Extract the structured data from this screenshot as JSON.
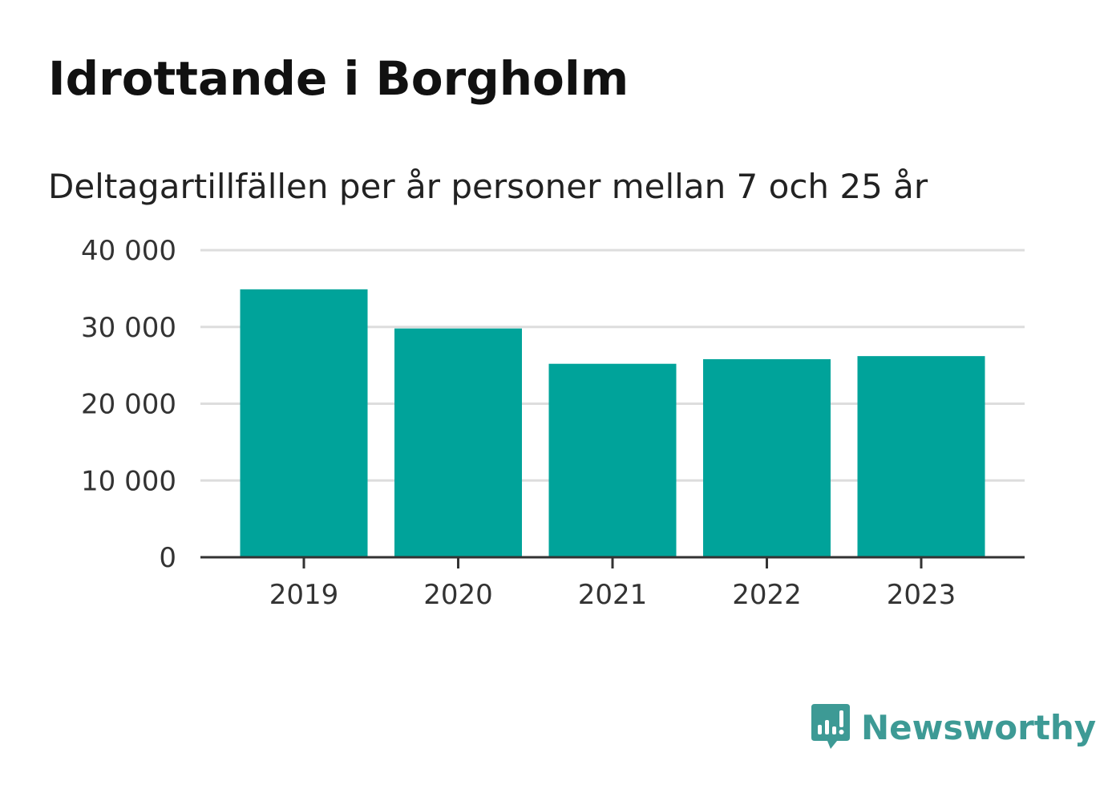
{
  "header": {
    "title": "Idrottande i Borgholm",
    "subtitle": "Deltagartillfällen per år personer mellan 7 och 25 år"
  },
  "brand": {
    "name": "Newsworthy",
    "icon": "newsworthy-logo-icon",
    "color": "#3d9a95"
  },
  "chart_data": {
    "type": "bar",
    "title": "Idrottande i Borgholm",
    "subtitle": "Deltagartillfällen per år personer mellan 7 och 25 år",
    "xlabel": "",
    "ylabel": "",
    "categories": [
      "2019",
      "2020",
      "2021",
      "2022",
      "2023"
    ],
    "values": [
      34900,
      29800,
      25200,
      25800,
      26200
    ],
    "ylim": [
      0,
      40000
    ],
    "yticks": [
      0,
      10000,
      20000,
      30000,
      40000
    ],
    "ytick_labels": [
      "0",
      "10 000",
      "20 000",
      "30 000",
      "40 000"
    ],
    "grid": true,
    "bar_color": "#00a39a",
    "legend": "none"
  }
}
